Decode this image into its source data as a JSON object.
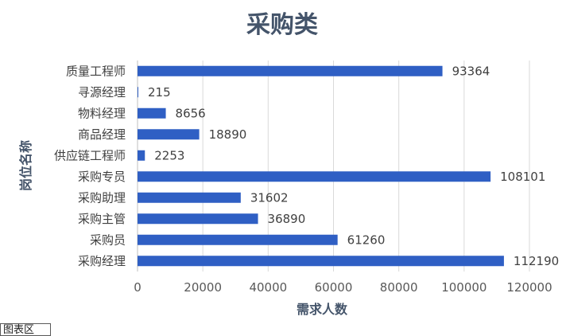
{
  "chart_data": {
    "type": "bar",
    "orientation": "horizontal",
    "title": "采购类",
    "xlabel": "需求人数",
    "ylabel": "岗位名称",
    "categories": [
      "采购经理",
      "采购员",
      "采购主管",
      "采购助理",
      "采购专员",
      "供应链工程师",
      "商品经理",
      "物料经理",
      "寻源经理",
      "质量工程师"
    ],
    "values": [
      112190,
      61260,
      36890,
      31602,
      108101,
      2253,
      18890,
      8656,
      215,
      93364
    ],
    "xlim": [
      0,
      120000
    ],
    "xticks": [
      "0",
      "20000",
      "40000",
      "60000",
      "80000",
      "100000",
      "120000"
    ],
    "grid": true,
    "bar_color": "#2f5fc4",
    "legend_label": "图表区"
  }
}
